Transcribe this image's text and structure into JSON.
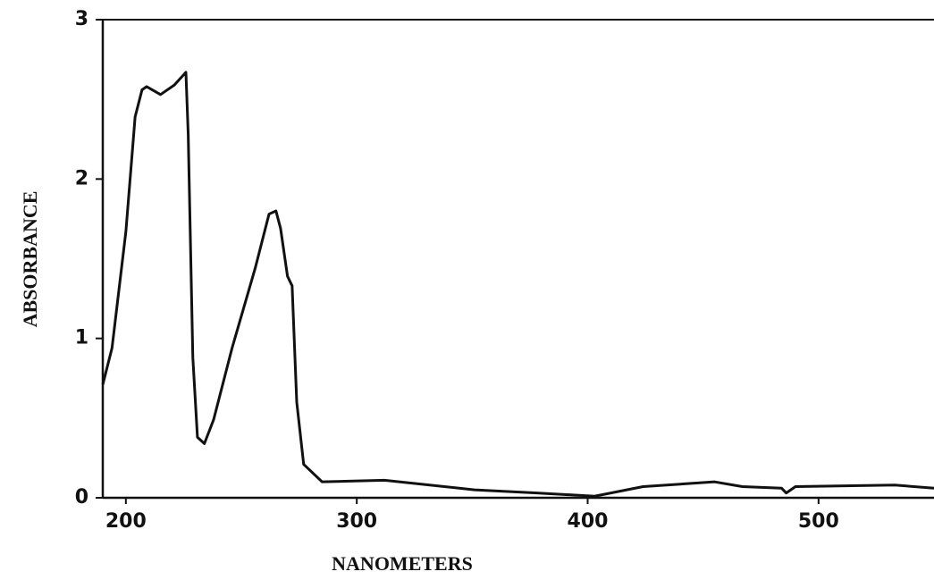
{
  "chart_data": {
    "type": "line",
    "xlabel": "NANOMETERS",
    "ylabel": "ABSORBANCE",
    "xlim": [
      190,
      550
    ],
    "ylim": [
      0,
      3
    ],
    "xticks": [
      200,
      300,
      400,
      500
    ],
    "yticks": [
      0,
      1,
      2,
      3
    ],
    "series": [
      {
        "color": "#111111",
        "x": [
          190,
          194,
          200,
          204,
          207,
          209,
          215,
          221,
          226,
          227,
          229,
          231,
          234,
          238,
          246,
          256,
          262,
          265,
          267,
          270,
          272,
          274,
          277,
          285,
          312,
          351,
          378,
          403,
          424,
          455,
          467,
          484,
          486,
          490,
          533,
          550
        ],
        "values": [
          0.71,
          0.94,
          1.67,
          2.39,
          2.56,
          2.58,
          2.53,
          2.59,
          2.67,
          2.28,
          0.88,
          0.38,
          0.34,
          0.49,
          0.94,
          1.44,
          1.78,
          1.8,
          1.69,
          1.39,
          1.33,
          0.6,
          0.21,
          0.1,
          0.11,
          0.05,
          0.03,
          0.01,
          0.07,
          0.1,
          0.07,
          0.06,
          0.03,
          0.07,
          0.08,
          0.06
        ]
      }
    ]
  }
}
